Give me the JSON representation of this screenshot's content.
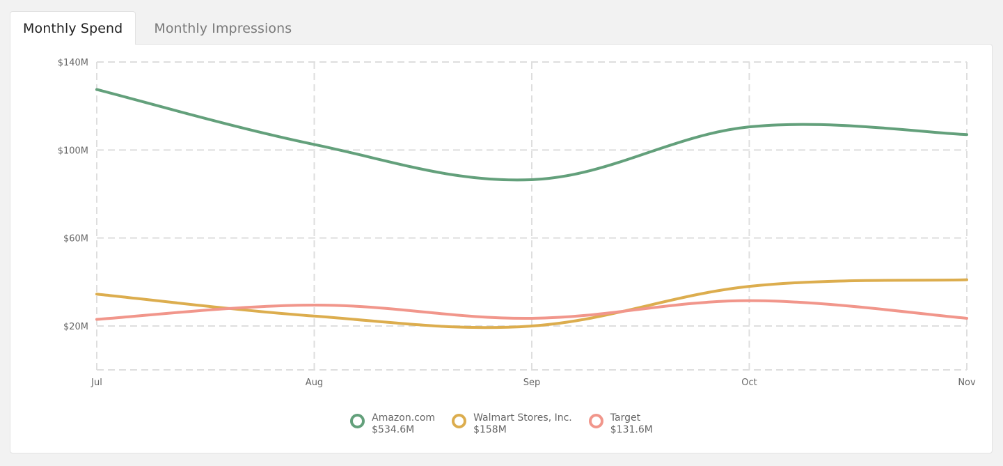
{
  "tabs": [
    {
      "label": "Monthly Spend",
      "active": true
    },
    {
      "label": "Monthly Impressions",
      "active": false
    }
  ],
  "colors": {
    "grid": "#dedede",
    "axis_text": "#666666",
    "amazon": "#63a07b",
    "walmart": "#dcad4e",
    "target": "#f1968b"
  },
  "chart_data": {
    "type": "line",
    "title": "",
    "xlabel": "",
    "ylabel": "",
    "categories": [
      "Jul",
      "Aug",
      "Sep",
      "Oct",
      "Nov"
    ],
    "ylim": [
      0,
      140
    ],
    "yticks": [
      20,
      60,
      100,
      140
    ],
    "ytick_labels": [
      "$20M",
      "$60M",
      "$100M",
      "$140M"
    ],
    "grid": true,
    "legend_position": "bottom-center",
    "series": [
      {
        "name": "Amazon.com",
        "total": "$534.6M",
        "color": "#63a07b",
        "values": [
          127.5,
          102.5,
          86.5,
          110.5,
          107
        ]
      },
      {
        "name": "Walmart Stores, Inc.",
        "total": "$158M",
        "color": "#dcad4e",
        "values": [
          34.5,
          24.5,
          20,
          38,
          41
        ]
      },
      {
        "name": "Target",
        "total": "$131.6M",
        "color": "#f1968b",
        "values": [
          23,
          29.5,
          23.5,
          31.5,
          23.5
        ]
      }
    ]
  }
}
